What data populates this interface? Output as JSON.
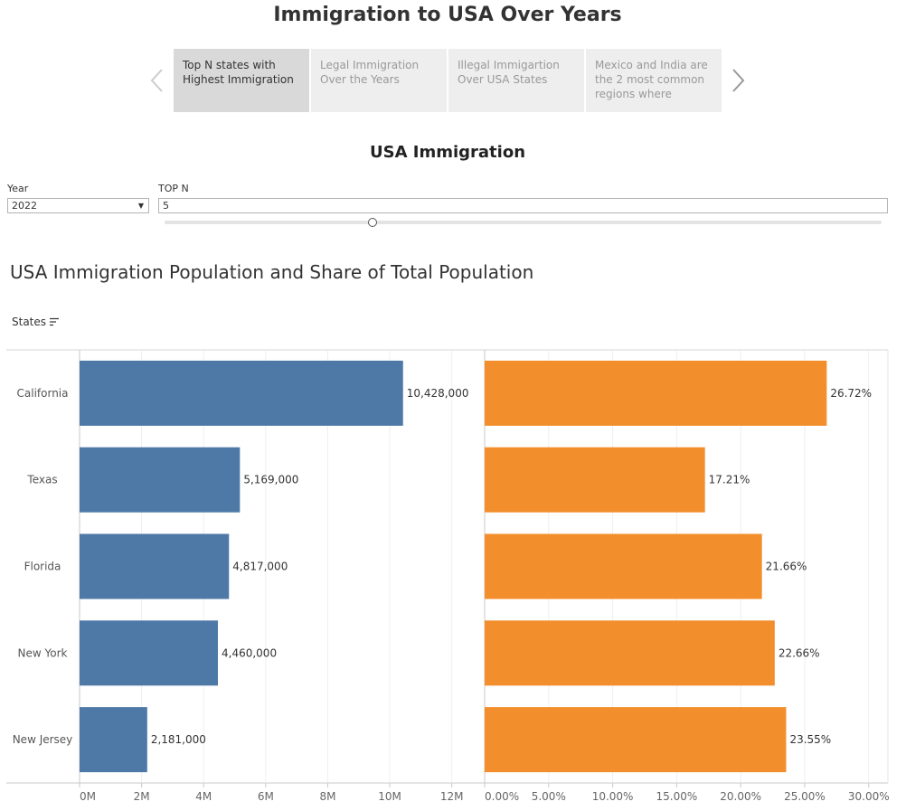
{
  "title": "Immigration to USA Over Years",
  "story": {
    "prev_icon": "chevron-left-icon",
    "next_icon": "chevron-right-icon",
    "points": [
      {
        "label": "Top N states with Highest Immigration",
        "active": true
      },
      {
        "label": "Legal Immigration Over the Years",
        "active": false
      },
      {
        "label": "Illegal Immigartion Over USA States",
        "active": false
      },
      {
        "label": "Mexico and India are the 2 most common regions where",
        "active": false
      }
    ]
  },
  "dashboard_title": "USA Immigration",
  "filters": {
    "year_label": "Year",
    "year_value": "2022",
    "topn_label": "TOP N",
    "topn_value": "5",
    "topn_slider_fraction": 0.29
  },
  "chart_title": "USA Immigration Population and Share of Total Population",
  "states_header": "States",
  "colors": {
    "population": "#4e79a7",
    "share": "#f28e2b"
  },
  "chart_data": [
    {
      "type": "bar",
      "orientation": "horizontal",
      "categories": [
        "California",
        "Texas",
        "Florida",
        "New York",
        "New Jersey"
      ],
      "values": [
        10428000,
        5169000,
        4817000,
        4460000,
        2181000
      ],
      "value_labels": [
        "10,428,000",
        "5,169,000",
        "4,817,000",
        "4,460,000",
        "2,181,000"
      ],
      "xlim": [
        0,
        13000000
      ],
      "ticks": [
        0,
        2000000,
        4000000,
        6000000,
        8000000,
        10000000,
        12000000
      ],
      "tick_labels": [
        "0M",
        "2M",
        "4M",
        "6M",
        "8M",
        "10M",
        "12M"
      ],
      "grid": true
    },
    {
      "type": "bar",
      "orientation": "horizontal",
      "categories": [
        "California",
        "Texas",
        "Florida",
        "New York",
        "New Jersey"
      ],
      "values": [
        26.72,
        17.21,
        21.66,
        22.66,
        23.55
      ],
      "value_labels": [
        "26.72%",
        "17.21%",
        "21.66%",
        "22.66%",
        "23.55%"
      ],
      "xlim": [
        0,
        31.5
      ],
      "ticks": [
        0,
        5,
        10,
        15,
        20,
        25,
        30
      ],
      "tick_labels": [
        "0.00%",
        "5.00%",
        "10.00%",
        "15.00%",
        "20.00%",
        "25.00%",
        "30.00%"
      ],
      "grid": true
    }
  ]
}
